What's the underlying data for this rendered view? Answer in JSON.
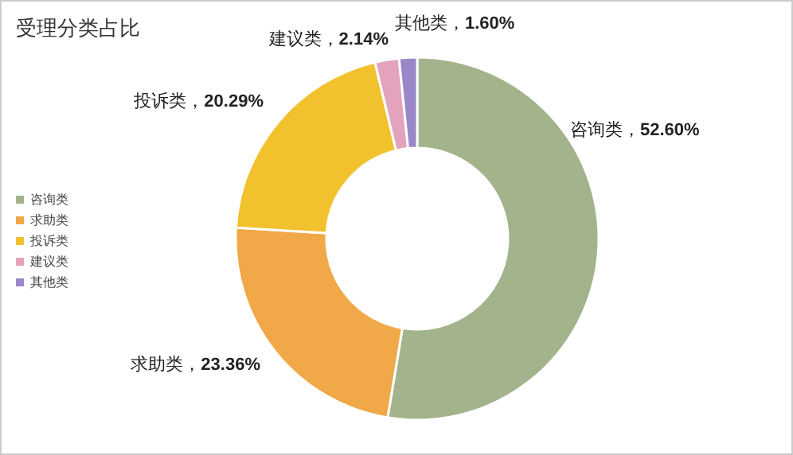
{
  "chart_data": {
    "type": "donut",
    "title": "受理分类占比",
    "categories": [
      "咨询类",
      "求助类",
      "投诉类",
      "建议类",
      "其他类"
    ],
    "values": [
      52.6,
      23.36,
      20.29,
      2.14,
      1.6
    ],
    "colors": [
      "#a3b38b",
      "#f0a848",
      "#f2c12e",
      "#e3a3bd",
      "#9a87c8"
    ],
    "value_labels": [
      "咨询类，52.60%",
      "求助类，23.36%",
      "投诉类，20.29%",
      "建议类，2.14%",
      "其他类，1.60%"
    ],
    "legend": "left"
  }
}
